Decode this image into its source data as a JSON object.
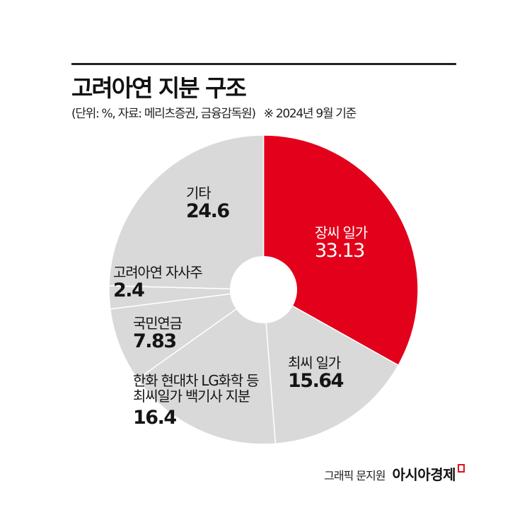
{
  "header": {
    "title": "고려아연 지분 구조",
    "subtitle": "(단위: %, 자료: 메리츠증권, 금융감독원)",
    "note": "※ 2024년 9월 기준"
  },
  "colors": {
    "accent": "#e2001a",
    "slice_gray": "#d9d9d9",
    "divider": "#ffffff",
    "rule": "#222222"
  },
  "labels": {
    "jang": {
      "name": "장씨 일가",
      "value": "33.13"
    },
    "choi": {
      "name": "최씨 일가",
      "value": "15.64"
    },
    "allies": {
      "name_line1": "한화 현대차 LG화학 등",
      "name_line2": "최씨일가 백기사 지분",
      "value": "16.4"
    },
    "nps": {
      "name": "국민연금",
      "value": "7.83"
    },
    "treasury": {
      "name": "고려아연 자사주",
      "value": "2.4"
    },
    "other": {
      "name": "기타",
      "value": "24.6"
    }
  },
  "footer": {
    "byline": "그래픽 문지원",
    "brand": "아시아경제"
  },
  "chart_data": {
    "type": "pie",
    "subtype": "donut",
    "title": "고려아연 지분 구조",
    "subtitle": "(단위: %, 자료: 메리츠증권, 금융감독원) ※ 2024년 9월 기준",
    "unit": "%",
    "start_angle_deg": 0,
    "direction": "clockwise",
    "categories": [
      "장씨 일가",
      "최씨 일가",
      "한화 현대차 LG화학 등 최씨일가 백기사 지분",
      "국민연금",
      "고려아연 자사주",
      "기타"
    ],
    "values": [
      33.13,
      15.64,
      16.4,
      7.83,
      2.4,
      24.6
    ],
    "colors": [
      "#e2001a",
      "#d9d9d9",
      "#d9d9d9",
      "#d9d9d9",
      "#d9d9d9",
      "#d9d9d9"
    ],
    "legend": "none (inline labels)",
    "highlighted": "장씨 일가"
  }
}
